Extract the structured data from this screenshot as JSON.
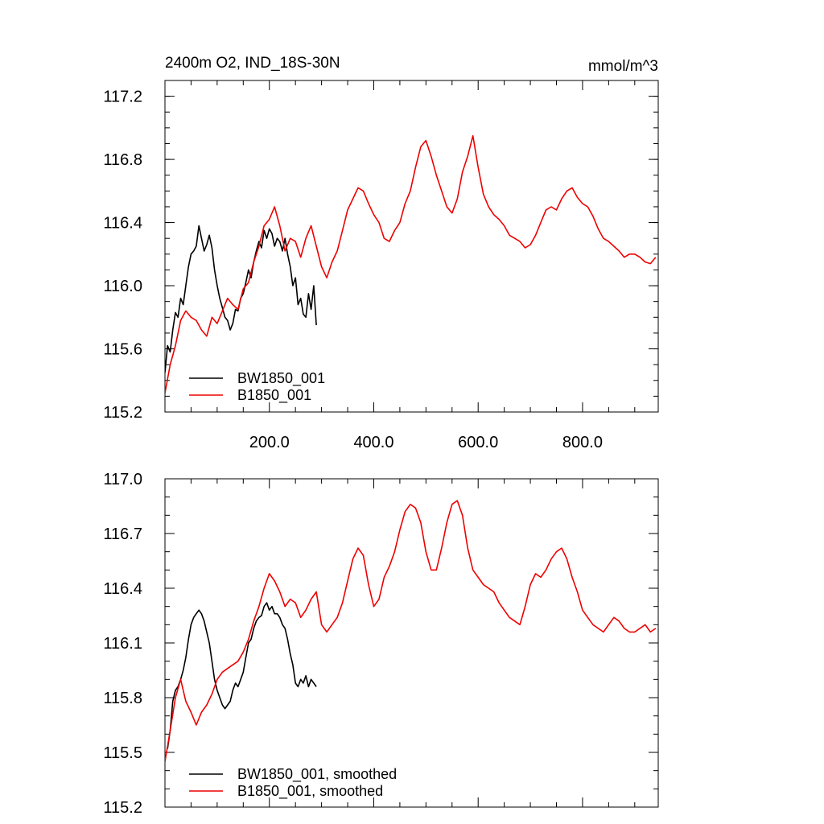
{
  "chart_data": [
    {
      "type": "line",
      "title": "2400m O2, IND_18S-30N",
      "units": "mmol/m^3",
      "xlabel": "",
      "ylabel": "",
      "xlim": [
        0,
        945
      ],
      "ylim": [
        115.2,
        117.3
      ],
      "yticks": [
        {
          "v": 115.2,
          "label": "115.2"
        },
        {
          "v": 115.6,
          "label": "115.6"
        },
        {
          "v": 116.0,
          "label": "116.0"
        },
        {
          "v": 116.4,
          "label": "116.4"
        },
        {
          "v": 116.8,
          "label": "116.8"
        },
        {
          "v": 117.2,
          "label": "117.2"
        }
      ],
      "xticks": [
        {
          "v": 200,
          "label": "200.0"
        },
        {
          "v": 400,
          "label": "400.0"
        },
        {
          "v": 600,
          "label": "600.0"
        },
        {
          "v": 800,
          "label": "800.0"
        }
      ],
      "legend": "bottom-left",
      "series": [
        {
          "name": "BW1850_001",
          "color": "#000000",
          "x": [
            0,
            5,
            10,
            15,
            20,
            25,
            30,
            35,
            40,
            45,
            50,
            55,
            60,
            65,
            70,
            75,
            80,
            85,
            90,
            95,
            100,
            105,
            110,
            115,
            120,
            125,
            130,
            135,
            140,
            145,
            150,
            155,
            160,
            165,
            170,
            175,
            180,
            185,
            190,
            195,
            200,
            205,
            210,
            215,
            220,
            225,
            230,
            235,
            240,
            245,
            250,
            255,
            260,
            265,
            270,
            275,
            280,
            285,
            290
          ],
          "y": [
            115.45,
            115.62,
            115.58,
            115.72,
            115.83,
            115.8,
            115.92,
            115.88,
            116.0,
            116.12,
            116.2,
            116.22,
            116.25,
            116.38,
            116.3,
            116.22,
            116.26,
            116.32,
            116.24,
            116.1,
            116.0,
            115.92,
            115.86,
            115.8,
            115.78,
            115.72,
            115.76,
            115.85,
            115.84,
            115.92,
            115.95,
            116.02,
            116.1,
            116.05,
            116.15,
            116.22,
            116.28,
            116.24,
            116.35,
            116.3,
            116.36,
            116.33,
            116.25,
            116.3,
            116.28,
            116.22,
            116.3,
            116.2,
            116.12,
            116.0,
            116.05,
            115.88,
            115.92,
            115.82,
            115.8,
            115.95,
            115.85,
            116.0,
            115.75
          ]
        },
        {
          "name": "B1850_001",
          "color": "#ee0000",
          "x": [
            0,
            10,
            20,
            30,
            40,
            50,
            60,
            70,
            80,
            90,
            100,
            110,
            120,
            130,
            140,
            150,
            160,
            170,
            180,
            190,
            200,
            210,
            220,
            230,
            240,
            250,
            260,
            270,
            280,
            290,
            300,
            310,
            320,
            330,
            340,
            350,
            360,
            370,
            380,
            390,
            400,
            410,
            420,
            430,
            440,
            450,
            460,
            470,
            480,
            490,
            500,
            510,
            520,
            530,
            540,
            550,
            560,
            570,
            580,
            590,
            600,
            610,
            620,
            630,
            640,
            650,
            660,
            670,
            680,
            690,
            700,
            710,
            720,
            730,
            740,
            750,
            760,
            770,
            780,
            790,
            800,
            810,
            820,
            830,
            840,
            850,
            860,
            870,
            880,
            890,
            900,
            910,
            920,
            930,
            940
          ],
          "y": [
            115.32,
            115.5,
            115.62,
            115.78,
            115.84,
            115.8,
            115.78,
            115.72,
            115.68,
            115.8,
            115.76,
            115.84,
            115.92,
            115.88,
            115.85,
            115.98,
            116.02,
            116.15,
            116.25,
            116.38,
            116.42,
            116.5,
            116.38,
            116.22,
            116.3,
            116.28,
            116.18,
            116.3,
            116.38,
            116.25,
            116.12,
            116.05,
            116.15,
            116.22,
            116.35,
            116.48,
            116.55,
            116.62,
            116.6,
            116.52,
            116.45,
            116.4,
            116.3,
            116.28,
            116.35,
            116.4,
            116.52,
            116.6,
            116.75,
            116.88,
            116.92,
            116.82,
            116.7,
            116.6,
            116.5,
            116.46,
            116.55,
            116.72,
            116.82,
            116.95,
            116.75,
            116.58,
            116.5,
            116.45,
            116.42,
            116.38,
            116.32,
            116.3,
            116.28,
            116.24,
            116.26,
            116.32,
            116.4,
            116.48,
            116.5,
            116.48,
            116.55,
            116.6,
            116.62,
            116.56,
            116.52,
            116.5,
            116.44,
            116.36,
            116.3,
            116.28,
            116.25,
            116.22,
            116.18,
            116.2,
            116.2,
            116.18,
            116.15,
            116.14,
            116.18
          ]
        }
      ]
    },
    {
      "type": "line",
      "title": "",
      "xlabel": "",
      "ylabel": "",
      "xlim": [
        0,
        945
      ],
      "ylim": [
        115.2,
        117.0
      ],
      "yticks": [
        {
          "v": 115.2,
          "label": "115.2"
        },
        {
          "v": 115.5,
          "label": "115.5"
        },
        {
          "v": 115.8,
          "label": "115.8"
        },
        {
          "v": 116.1,
          "label": "116.1"
        },
        {
          "v": 116.4,
          "label": "116.4"
        },
        {
          "v": 116.7,
          "label": "116.7"
        },
        {
          "v": 117.0,
          "label": "117.0"
        }
      ],
      "xticks": [],
      "legend": "bottom-left",
      "series": [
        {
          "name": "BW1850_001, smoothed",
          "color": "#000000",
          "x": [
            5,
            10,
            15,
            20,
            25,
            30,
            35,
            40,
            45,
            50,
            55,
            60,
            65,
            70,
            75,
            80,
            85,
            90,
            95,
            100,
            105,
            110,
            115,
            120,
            125,
            130,
            135,
            140,
            145,
            150,
            155,
            160,
            165,
            170,
            175,
            180,
            185,
            190,
            195,
            200,
            205,
            210,
            215,
            220,
            225,
            230,
            235,
            240,
            245,
            250,
            255,
            260,
            265,
            270,
            275,
            280,
            285,
            290
          ],
          "y": [
            115.52,
            115.62,
            115.78,
            115.84,
            115.86,
            115.9,
            115.95,
            116.02,
            116.12,
            116.2,
            116.24,
            116.26,
            116.28,
            116.26,
            116.22,
            116.16,
            116.1,
            116.0,
            115.9,
            115.84,
            115.8,
            115.76,
            115.74,
            115.76,
            115.78,
            115.84,
            115.88,
            115.86,
            115.9,
            115.94,
            116.02,
            116.1,
            116.12,
            116.18,
            116.22,
            116.24,
            116.25,
            116.3,
            116.32,
            116.28,
            116.3,
            116.26,
            116.26,
            116.24,
            116.2,
            116.18,
            116.12,
            116.04,
            115.98,
            115.88,
            115.86,
            115.9,
            115.88,
            115.92,
            115.86,
            115.9,
            115.88,
            115.86
          ],
          "legend_order": 0
        },
        {
          "name": "B1850_001, smoothed",
          "color": "#ee0000",
          "x": [
            0,
            10,
            20,
            30,
            40,
            50,
            60,
            70,
            80,
            90,
            100,
            110,
            120,
            130,
            140,
            150,
            160,
            170,
            180,
            190,
            200,
            210,
            220,
            230,
            240,
            250,
            260,
            270,
            280,
            290,
            300,
            310,
            320,
            330,
            340,
            350,
            360,
            370,
            380,
            390,
            400,
            410,
            420,
            430,
            440,
            450,
            460,
            470,
            480,
            490,
            500,
            510,
            520,
            530,
            540,
            550,
            560,
            570,
            580,
            590,
            600,
            610,
            620,
            630,
            640,
            650,
            660,
            670,
            680,
            690,
            700,
            710,
            720,
            730,
            740,
            750,
            760,
            770,
            780,
            790,
            800,
            810,
            820,
            830,
            840,
            850,
            860,
            870,
            880,
            890,
            900,
            910,
            920,
            930,
            940
          ],
          "y": [
            115.45,
            115.62,
            115.8,
            115.9,
            115.78,
            115.72,
            115.65,
            115.72,
            115.76,
            115.82,
            115.9,
            115.94,
            115.96,
            115.98,
            116.0,
            116.05,
            116.12,
            116.22,
            116.3,
            116.4,
            116.48,
            116.44,
            116.38,
            116.3,
            116.34,
            116.32,
            116.24,
            116.28,
            116.34,
            116.38,
            116.2,
            116.16,
            116.2,
            116.24,
            116.32,
            116.44,
            116.56,
            116.62,
            116.58,
            116.42,
            116.3,
            116.34,
            116.46,
            116.52,
            116.6,
            116.72,
            116.82,
            116.86,
            116.84,
            116.76,
            116.6,
            116.5,
            116.5,
            116.62,
            116.76,
            116.86,
            116.88,
            116.8,
            116.62,
            116.5,
            116.46,
            116.42,
            116.4,
            116.38,
            116.32,
            116.28,
            116.24,
            116.22,
            116.2,
            116.3,
            116.42,
            116.48,
            116.46,
            116.5,
            116.56,
            116.6,
            116.62,
            116.56,
            116.46,
            116.38,
            116.28,
            116.24,
            116.2,
            116.18,
            116.16,
            116.2,
            116.24,
            116.22,
            116.18,
            116.16,
            116.16,
            116.18,
            116.2,
            116.16,
            116.18
          ],
          "legend_order": 1
        }
      ]
    }
  ]
}
